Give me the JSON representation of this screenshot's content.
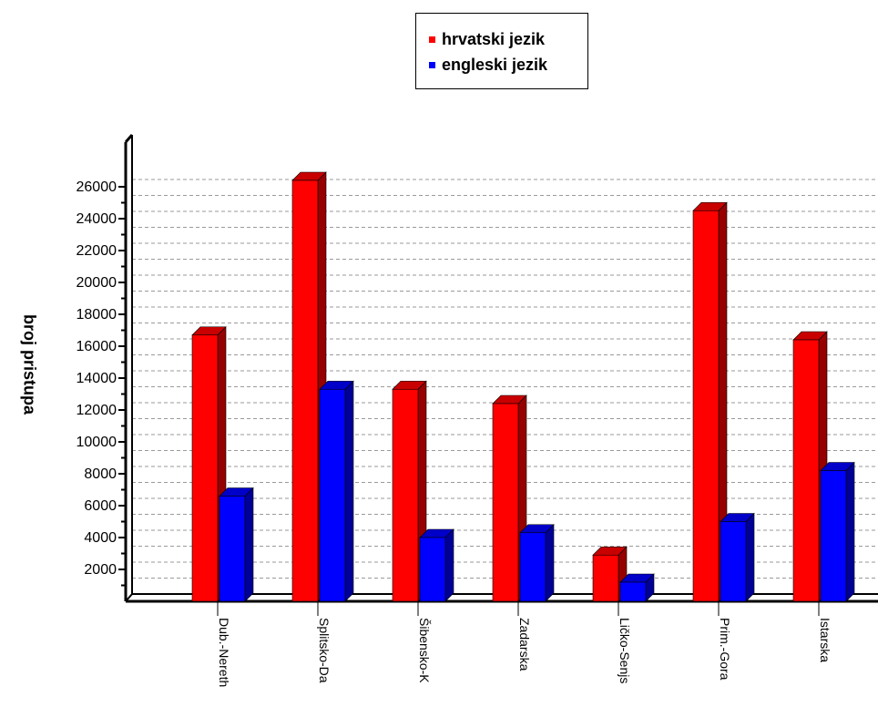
{
  "chart_data": {
    "type": "bar",
    "categories": [
      "Dub.-Nereth",
      "Splitsko-Da",
      "Šibensko-K",
      "Zadarska",
      "Ličko-Senjs",
      "Prim.-Gora",
      "Istarska"
    ],
    "series": [
      {
        "name": "hrvatski jezik",
        "color": "#ff0000",
        "values": [
          16700,
          26400,
          13300,
          12400,
          2900,
          24500,
          16400
        ]
      },
      {
        "name": "engleski jezik",
        "color": "#0000ff",
        "values": [
          6600,
          13300,
          4000,
          4300,
          1200,
          5000,
          8200
        ]
      }
    ],
    "yticks": [
      2000,
      4000,
      6000,
      8000,
      10000,
      12000,
      14000,
      16000,
      18000,
      20000,
      22000,
      24000,
      26000
    ],
    "ylim": [
      0,
      26000
    ],
    "xlabel": "",
    "ylabel": "broj pristupa",
    "grid": true,
    "legend": "top-center"
  }
}
